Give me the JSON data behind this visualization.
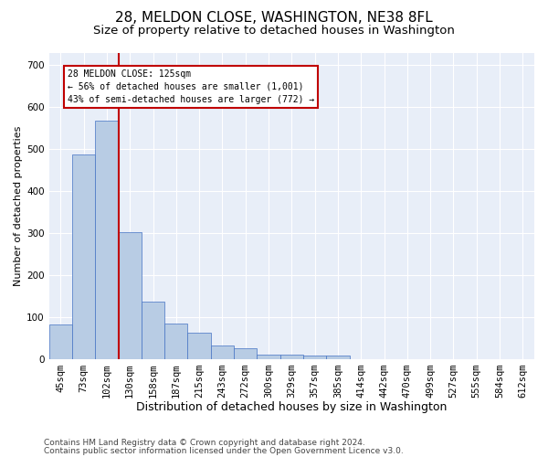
{
  "title1": "28, MELDON CLOSE, WASHINGTON, NE38 8FL",
  "title2": "Size of property relative to detached houses in Washington",
  "xlabel": "Distribution of detached houses by size in Washington",
  "ylabel": "Number of detached properties",
  "categories": [
    "45sqm",
    "73sqm",
    "102sqm",
    "130sqm",
    "158sqm",
    "187sqm",
    "215sqm",
    "243sqm",
    "272sqm",
    "300sqm",
    "329sqm",
    "357sqm",
    "385sqm",
    "414sqm",
    "442sqm",
    "470sqm",
    "499sqm",
    "527sqm",
    "555sqm",
    "584sqm",
    "612sqm"
  ],
  "values": [
    82,
    488,
    567,
    303,
    136,
    84,
    62,
    32,
    26,
    10,
    10,
    9,
    9,
    0,
    0,
    0,
    0,
    0,
    0,
    0,
    0
  ],
  "bar_color": "#b8cce4",
  "bar_edgecolor": "#4472c4",
  "vline_x": 2.5,
  "vline_color": "#c00000",
  "annotation_text": "28 MELDON CLOSE: 125sqm\n← 56% of detached houses are smaller (1,001)\n43% of semi-detached houses are larger (772) →",
  "annotation_box_color": "#ffffff",
  "annotation_box_edgecolor": "#c00000",
  "ylim": [
    0,
    730
  ],
  "yticks": [
    0,
    100,
    200,
    300,
    400,
    500,
    600,
    700
  ],
  "footnote1": "Contains HM Land Registry data © Crown copyright and database right 2024.",
  "footnote2": "Contains public sector information licensed under the Open Government Licence v3.0.",
  "plot_background": "#e8eef8",
  "title1_fontsize": 11,
  "title2_fontsize": 9.5,
  "xlabel_fontsize": 9,
  "ylabel_fontsize": 8,
  "tick_fontsize": 7.5,
  "footnote_fontsize": 6.5
}
